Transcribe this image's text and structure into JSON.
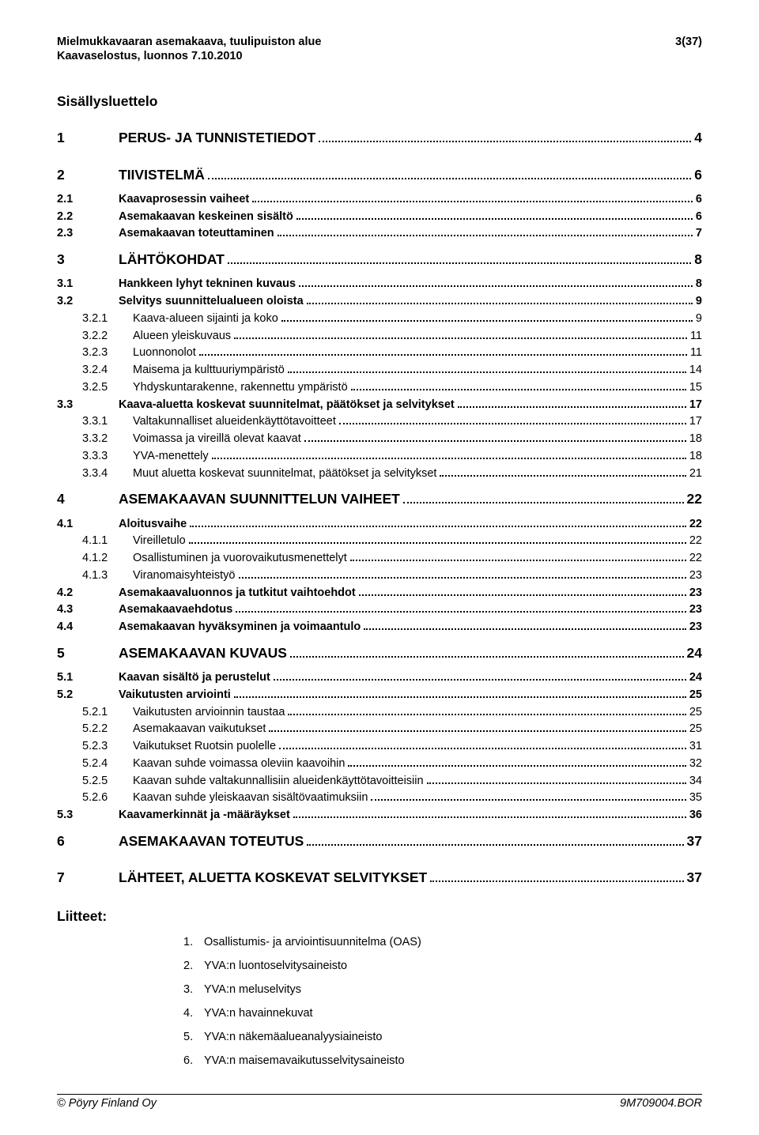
{
  "header": {
    "line1": "Mielmukkavaaran asemakaava, tuulipuiston alue",
    "line2": "Kaavaselostus, luonnos 7.10.2010",
    "page_indicator": "3(37)"
  },
  "toc_title": "Sisällysluettelo",
  "sections": [
    {
      "level": "l1",
      "bold": true,
      "num": "1",
      "label": "PERUS- JA TUNNISTETIEDOT",
      "page": "4",
      "gap_after": "big"
    },
    {
      "level": "l1",
      "bold": true,
      "num": "2",
      "label": "TIIVISTELMÄ",
      "page": "6",
      "gap_after": "med"
    },
    {
      "level": "l1b",
      "bold": true,
      "num": "2.1",
      "label": "Kaavaprosessin vaiheet",
      "page": "6",
      "gap_after": ""
    },
    {
      "level": "l1b",
      "bold": true,
      "num": "2.2",
      "label": "Asemakaavan keskeinen sisältö",
      "page": "6",
      "gap_after": ""
    },
    {
      "level": "l1b",
      "bold": true,
      "num": "2.3",
      "label": "Asemakaavan toteuttaminen",
      "page": "7",
      "gap_after": "med"
    },
    {
      "level": "l1",
      "bold": true,
      "num": "3",
      "label": "LÄHTÖKOHDAT",
      "page": "8",
      "gap_after": "med"
    },
    {
      "level": "l1b",
      "bold": true,
      "num": "3.1",
      "label": "Hankkeen lyhyt tekninen kuvaus",
      "page": "8",
      "gap_after": ""
    },
    {
      "level": "l1b",
      "bold": true,
      "num": "3.2",
      "label": "Selvitys suunnittelualueen oloista",
      "page": "9",
      "gap_after": ""
    },
    {
      "level": "l2",
      "bold": false,
      "num": "3.2.1",
      "label": "Kaava-alueen sijainti ja koko",
      "page": "9",
      "gap_after": ""
    },
    {
      "level": "l2",
      "bold": false,
      "num": "3.2.2",
      "label": "Alueen yleiskuvaus",
      "page": "11",
      "gap_after": ""
    },
    {
      "level": "l2",
      "bold": false,
      "num": "3.2.3",
      "label": "Luonnonolot",
      "page": "11",
      "gap_after": ""
    },
    {
      "level": "l2",
      "bold": false,
      "num": "3.2.4",
      "label": "Maisema ja kulttuuriympäristö",
      "page": "14",
      "gap_after": ""
    },
    {
      "level": "l2",
      "bold": false,
      "num": "3.2.5",
      "label": "Yhdyskuntarakenne, rakennettu ympäristö",
      "page": "15",
      "gap_after": ""
    },
    {
      "level": "l1b",
      "bold": true,
      "num": "3.3",
      "label": "Kaava-aluetta koskevat suunnitelmat, päätökset ja selvitykset",
      "page": "17",
      "gap_after": ""
    },
    {
      "level": "l2",
      "bold": false,
      "num": "3.3.1",
      "label": "Valtakunnalliset alueidenkäyttötavoitteet",
      "page": "17",
      "gap_after": ""
    },
    {
      "level": "l2",
      "bold": false,
      "num": "3.3.2",
      "label": "Voimassa ja vireillä olevat kaavat",
      "page": "18",
      "gap_after": ""
    },
    {
      "level": "l2",
      "bold": false,
      "num": "3.3.3",
      "label": "YVA-menettely",
      "page": "18",
      "gap_after": ""
    },
    {
      "level": "l2",
      "bold": false,
      "num": "3.3.4",
      "label": "Muut aluetta koskevat suunnitelmat, päätökset ja selvitykset",
      "page": "21",
      "gap_after": "med"
    },
    {
      "level": "l1",
      "bold": true,
      "num": "4",
      "label": "ASEMAKAAVAN SUUNNITTELUN VAIHEET",
      "page": "22",
      "gap_after": "med"
    },
    {
      "level": "l1b",
      "bold": true,
      "num": "4.1",
      "label": "Aloitusvaihe",
      "page": "22",
      "gap_after": ""
    },
    {
      "level": "l2",
      "bold": false,
      "num": "4.1.1",
      "label": "Vireilletulo",
      "page": "22",
      "gap_after": ""
    },
    {
      "level": "l2",
      "bold": false,
      "num": "4.1.2",
      "label": "Osallistuminen ja vuorovaikutusmenettelyt",
      "page": "22",
      "gap_after": ""
    },
    {
      "level": "l2",
      "bold": false,
      "num": "4.1.3",
      "label": "Viranomaisyhteistyö",
      "page": "23",
      "gap_after": ""
    },
    {
      "level": "l1b",
      "bold": true,
      "num": "4.2",
      "label": "Asemakaavaluonnos ja tutkitut vaihtoehdot",
      "page": "23",
      "gap_after": ""
    },
    {
      "level": "l1b",
      "bold": true,
      "num": "4.3",
      "label": "Asemakaavaehdotus",
      "page": "23",
      "gap_after": ""
    },
    {
      "level": "l1b",
      "bold": true,
      "num": "4.4",
      "label": "Asemakaavan hyväksyminen ja voimaantulo",
      "page": "23",
      "gap_after": "med"
    },
    {
      "level": "l1",
      "bold": true,
      "num": "5",
      "label": "ASEMAKAAVAN KUVAUS",
      "page": "24",
      "gap_after": "med"
    },
    {
      "level": "l1b",
      "bold": true,
      "num": "5.1",
      "label": "Kaavan sisältö ja perustelut",
      "page": "24",
      "gap_after": ""
    },
    {
      "level": "l1b",
      "bold": true,
      "num": "5.2",
      "label": "Vaikutusten arviointi",
      "page": "25",
      "gap_after": ""
    },
    {
      "level": "l2",
      "bold": false,
      "num": "5.2.1",
      "label": "Vaikutusten arvioinnin taustaa",
      "page": "25",
      "gap_after": ""
    },
    {
      "level": "l2",
      "bold": false,
      "num": "5.2.2",
      "label": "Asemakaavan vaikutukset",
      "page": "25",
      "gap_after": ""
    },
    {
      "level": "l2",
      "bold": false,
      "num": "5.2.3",
      "label": "Vaikutukset Ruotsin puolelle",
      "page": "31",
      "gap_after": ""
    },
    {
      "level": "l2",
      "bold": false,
      "num": "5.2.4",
      "label": "Kaavan suhde voimassa oleviin kaavoihin",
      "page": "32",
      "gap_after": ""
    },
    {
      "level": "l2",
      "bold": false,
      "num": "5.2.5",
      "label": "Kaavan suhde valtakunnallisiin alueidenkäyttötavoitteisiin",
      "page": "34",
      "gap_after": ""
    },
    {
      "level": "l2",
      "bold": false,
      "num": "5.2.6",
      "label": "Kaavan suhde yleiskaavan sisältövaatimuksiin",
      "page": "35",
      "gap_after": ""
    },
    {
      "level": "l1b",
      "bold": true,
      "num": "5.3",
      "label": "Kaavamerkinnät ja -määräykset",
      "page": "36",
      "gap_after": "med"
    },
    {
      "level": "l1",
      "bold": true,
      "num": "6",
      "label": "ASEMAKAAVAN TOTEUTUS",
      "page": "37",
      "gap_after": "big"
    },
    {
      "level": "l1",
      "bold": true,
      "num": "7",
      "label": "LÄHTEET, ALUETTA KOSKEVAT SELVITYKSET",
      "page": "37",
      "gap_after": ""
    }
  ],
  "attachments_title": "Liitteet:",
  "attachments": [
    {
      "n": "1.",
      "text": "Osallistumis- ja arviointisuunnitelma (OAS)"
    },
    {
      "n": "2.",
      "text": "YVA:n luontoselvitysaineisto"
    },
    {
      "n": "3.",
      "text": "YVA:n meluselvitys"
    },
    {
      "n": "4.",
      "text": "YVA:n havainnekuvat"
    },
    {
      "n": "5.",
      "text": "YVA:n näkemäalueanalyysiaineisto"
    },
    {
      "n": "6.",
      "text": "YVA:n maisemavaikutusselvitysaineisto"
    }
  ],
  "footer": {
    "left": "© Pöyry Finland Oy",
    "right": "9M709004.BOR"
  }
}
